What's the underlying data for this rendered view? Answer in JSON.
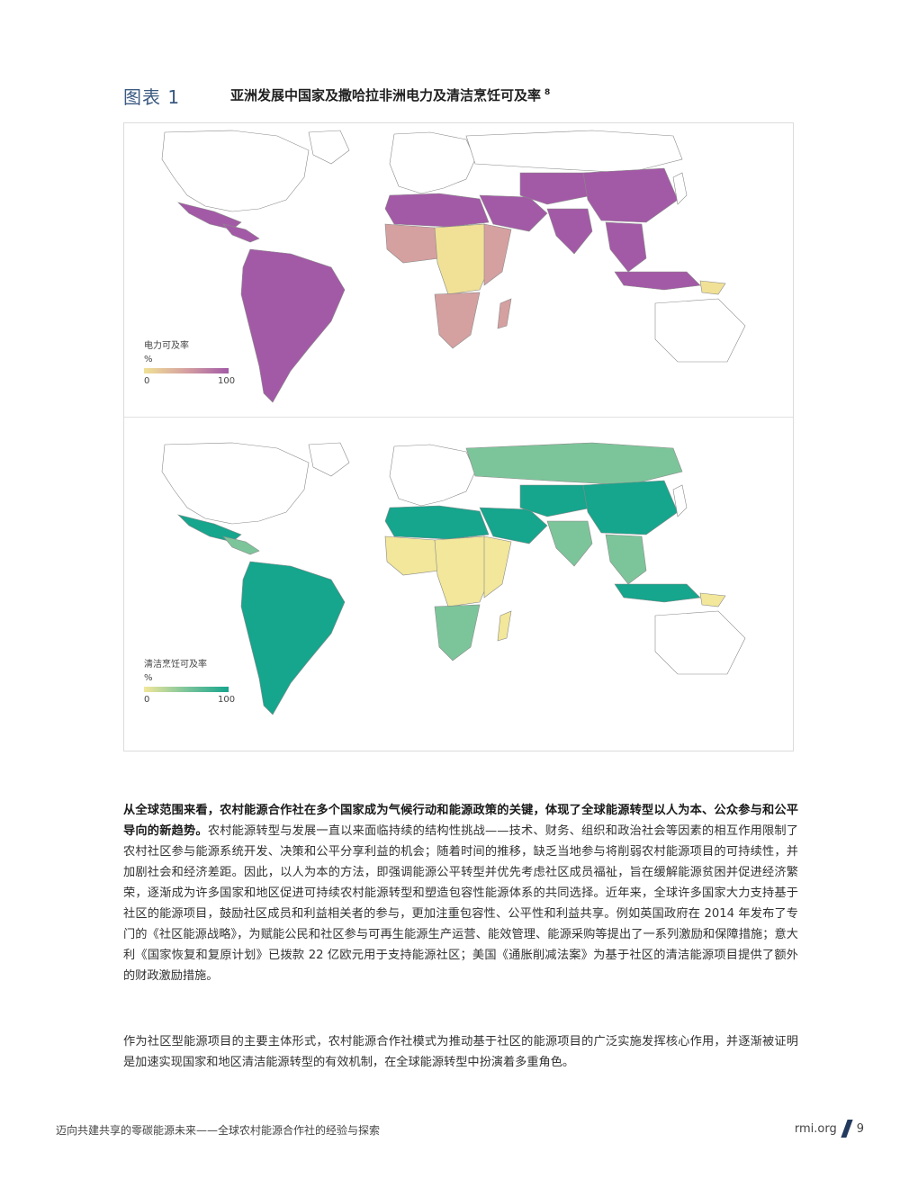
{
  "figure": {
    "label": "图表 1",
    "title": "亚洲发展中国家及撒哈拉非洲电力及清洁烹饪可及率",
    "footnote": "8",
    "colors": {
      "elec_low": "#f0e196",
      "elec_mid": "#d5a0a0",
      "elec_high": "#a35aa6",
      "cook_low": "#f2e79a",
      "cook_mid": "#7cc59a",
      "cook_high": "#16a58d",
      "no_data": "#ffffff",
      "border": "#8a8a8a"
    },
    "maps": [
      {
        "legend_title": "电力可及率",
        "legend_unit": "%",
        "legend_min": "0",
        "legend_max": "100"
      },
      {
        "legend_title": "清洁烹饪可及率",
        "legend_unit": "%",
        "legend_min": "0",
        "legend_max": "100"
      }
    ]
  },
  "body": {
    "p1_bold": "从全球范围来看，农村能源合作社在多个国家成为气候行动和能源政策的关键，体现了全球能源转型以人为本、公众参与和公平导向的新趋势。",
    "p1_text": "农村能源转型与发展一直以来面临持续的结构性挑战——技术、财务、组织和政治社会等因素的相互作用限制了农村社区参与能源系统开发、决策和公平分享利益的机会；随着时间的推移，缺乏当地参与将削弱农村能源项目的可持续性，并加剧社会和经济差距。因此，以人为本的方法，即强调能源公平转型并优先考虑社区成员福祉，旨在缓解能源贫困并促进经济繁荣，逐渐成为许多国家和地区促进可持续农村能源转型和塑造包容性能源体系的共同选择。近年来，全球许多国家大力支持基于社区的能源项目，鼓励社区成员和利益相关者的参与，更加注重包容性、公平性和利益共享。例如英国政府在 2014 年发布了专门的《社区能源战略》，为赋能公民和社区参与可再生能源生产运营、能效管理、能源采购等提出了一系列激励和保障措施；意大利《国家恢复和复原计划》已拨款 22 亿欧元用于支持能源社区；美国《通胀削减法案》为基于社区的清洁能源项目提供了额外的财政激励措施。",
    "p2_text": "作为社区型能源项目的主要主体形式，农村能源合作社模式为推动基于社区的能源项目的广泛实施发挥核心作用，并逐渐被证明是加速实现国家和地区清洁能源转型的有效机制，在全球能源转型中扮演着多重角色。"
  },
  "footer": {
    "left": "迈向共建共享的零碳能源未来——全球农村能源合作社的经验与探索",
    "site": "rmi.org",
    "page": "9"
  }
}
